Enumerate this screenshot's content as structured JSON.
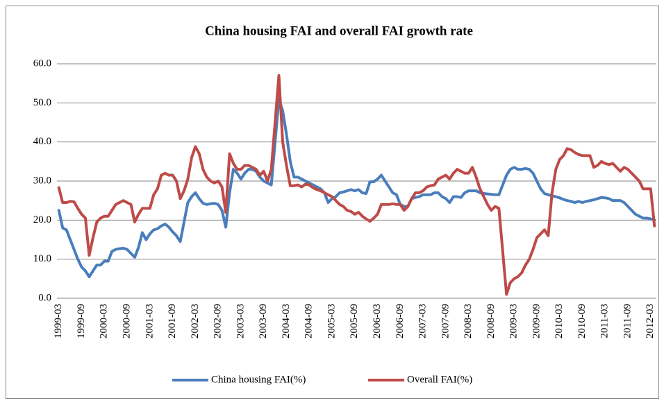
{
  "chart_data": {
    "type": "line",
    "title": "China housing FAI and overall FAI growth rate",
    "categories": [
      "1999-03",
      null,
      null,
      null,
      null,
      null,
      "1999-09",
      null,
      null,
      null,
      null,
      null,
      "2000-03",
      null,
      null,
      null,
      null,
      null,
      "2000-09",
      null,
      null,
      null,
      null,
      null,
      "2001-03",
      null,
      null,
      null,
      null,
      null,
      "2001-09",
      null,
      null,
      null,
      null,
      null,
      "2002-03",
      null,
      null,
      null,
      null,
      null,
      "2002-09",
      null,
      null,
      null,
      null,
      null,
      "2003-03",
      null,
      null,
      null,
      null,
      null,
      "2003-09",
      null,
      null,
      null,
      null,
      null,
      "2004-03",
      null,
      null,
      null,
      null,
      null,
      "2004-09",
      null,
      null,
      null,
      null,
      null,
      "2005-03",
      null,
      null,
      null,
      null,
      null,
      "2005-09",
      null,
      null,
      null,
      null,
      null,
      "2006-03",
      null,
      null,
      null,
      null,
      null,
      "2006-09",
      null,
      null,
      null,
      null,
      null,
      "2007-03",
      null,
      null,
      null,
      null,
      null,
      "2007-09",
      null,
      null,
      null,
      null,
      null,
      "2008-03",
      null,
      null,
      null,
      null,
      null,
      "2008-09",
      null,
      null,
      null,
      null,
      null,
      "2009-03",
      null,
      null,
      null,
      null,
      null,
      "2009-09",
      null,
      null,
      null,
      null,
      null,
      "2010-03",
      null,
      null,
      null,
      null,
      null,
      "2010-09",
      null,
      null,
      null,
      null,
      null,
      "2011-03",
      null,
      null,
      null,
      null,
      null,
      "2011-09",
      null,
      null,
      null,
      null,
      null,
      "2012-03",
      null
    ],
    "series": [
      {
        "name": "China housing FAI(%)",
        "color": "#4a7ebb",
        "values": [
          22.5,
          18,
          17.5,
          15,
          12.5,
          10,
          8,
          7,
          5.5,
          7,
          8.5,
          8.5,
          9.5,
          9.5,
          12,
          12.5,
          12.7,
          12.8,
          12.5,
          11.5,
          10.5,
          13,
          16.8,
          15,
          16.5,
          17.5,
          17.8,
          18.5,
          19,
          18.2,
          17,
          16,
          14.5,
          19.5,
          24.5,
          26,
          27,
          25.5,
          24.3,
          24,
          24.2,
          24.3,
          24,
          22.5,
          18.2,
          27,
          33,
          32,
          30.5,
          32,
          33,
          33,
          32.5,
          31,
          30,
          29.5,
          29,
          40,
          51,
          48,
          42,
          35,
          31,
          31,
          30.5,
          30,
          29.5,
          29,
          28.5,
          28,
          27,
          24.5,
          25.5,
          26,
          27,
          27.2,
          27.5,
          27.8,
          27.5,
          27.8,
          27,
          26.8,
          29.8,
          29.8,
          30.5,
          31.5,
          30,
          28.5,
          27,
          26.5,
          24,
          23.5,
          23.5,
          25.5,
          25.8,
          26,
          26.5,
          26.5,
          26.5,
          27,
          27,
          26,
          25.5,
          24.5,
          26,
          26,
          25.8,
          27,
          27.5,
          27.5,
          27.5,
          27,
          26.8,
          26.7,
          26.6,
          26.5,
          26.5,
          29,
          31.5,
          33,
          33.5,
          33,
          33,
          33.2,
          33,
          32,
          30,
          28,
          26.8,
          26.5,
          26.2,
          26,
          25.7,
          25.3,
          25,
          24.8,
          24.5,
          24.8,
          24.5,
          24.8,
          25,
          25.2,
          25.5,
          25.8,
          25.7,
          25.5,
          25,
          25,
          25,
          24.5,
          23.5,
          22.5,
          21.5,
          21,
          20.5,
          20.5,
          20.3,
          20
        ]
      },
      {
        "name": "Overall FAI(%)",
        "color": "#be4b48",
        "values": [
          28.3,
          24.5,
          24.5,
          24.8,
          24.7,
          23,
          21.5,
          20.5,
          11,
          15.5,
          19.5,
          20.5,
          21,
          21,
          22.5,
          24,
          24.5,
          25,
          24.5,
          24,
          19.5,
          21.5,
          23,
          23,
          23,
          26.5,
          28,
          31.5,
          32,
          31.5,
          31.5,
          30,
          25.5,
          27.5,
          30.5,
          36,
          38.8,
          37,
          33,
          31,
          30,
          29.5,
          30,
          28.5,
          22,
          37,
          34.5,
          33,
          33,
          34,
          34,
          33.5,
          33,
          31.5,
          32.5,
          30,
          33,
          45,
          57,
          40,
          34,
          28.8,
          28.8,
          29,
          28.5,
          29.2,
          29,
          28.3,
          27.8,
          27.5,
          27,
          26.5,
          26,
          25,
          24,
          23.5,
          22.5,
          22.2,
          21.5,
          22,
          21,
          20.3,
          19.7,
          20.5,
          21.5,
          24,
          24,
          24,
          24.2,
          24,
          24,
          22.5,
          23.5,
          25.5,
          27,
          27,
          27.5,
          28.5,
          28.8,
          29,
          30.5,
          31,
          31.5,
          30.5,
          32,
          33,
          32.5,
          32,
          32,
          33.5,
          31,
          28,
          26,
          24,
          22.5,
          23.5,
          23,
          12,
          1,
          4,
          5,
          5.5,
          6.5,
          8.5,
          10,
          12.5,
          15.5,
          16.5,
          17.5,
          16,
          27,
          33,
          35.5,
          36.5,
          38.3,
          38,
          37.3,
          36.8,
          36.5,
          36.5,
          36.5,
          33.5,
          34,
          35,
          34.5,
          34.2,
          34.5,
          33.5,
          32.5,
          33.5,
          33,
          32,
          31,
          30,
          28,
          28,
          28,
          18.5
        ]
      }
    ],
    "ylim": [
      0,
      60
    ],
    "yticks": [
      {
        "value": 0,
        "label": "0.0"
      },
      {
        "value": 10,
        "label": "10.0"
      },
      {
        "value": 20,
        "label": "20.0"
      },
      {
        "value": 30,
        "label": "30.0"
      },
      {
        "value": 40,
        "label": "40.0"
      },
      {
        "value": 50,
        "label": "50.0"
      },
      {
        "value": 60,
        "label": "60.0"
      }
    ],
    "grid": true,
    "legend": "bottom"
  }
}
